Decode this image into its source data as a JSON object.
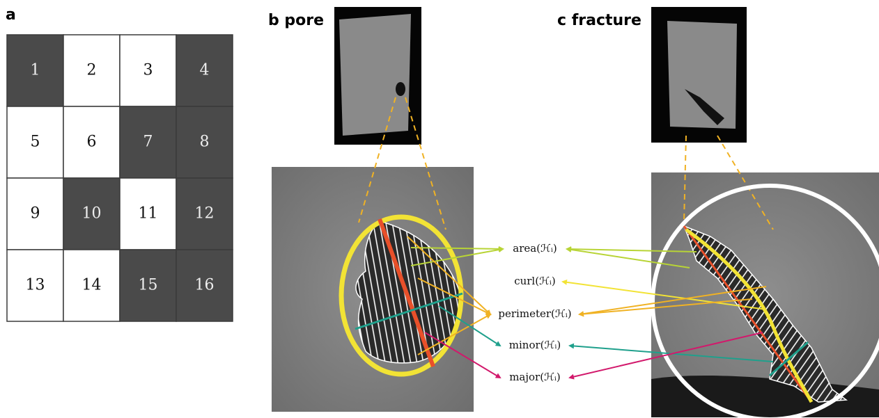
{
  "panels": {
    "a": "a",
    "b": "b pore",
    "c": "c fracture"
  },
  "grid": {
    "cells": [
      {
        "label": "1",
        "dark": true
      },
      {
        "label": "2",
        "dark": false
      },
      {
        "label": "3",
        "dark": false
      },
      {
        "label": "4",
        "dark": true
      },
      {
        "label": "5",
        "dark": false
      },
      {
        "label": "6",
        "dark": false
      },
      {
        "label": "7",
        "dark": true
      },
      {
        "label": "8",
        "dark": true
      },
      {
        "label": "9",
        "dark": false
      },
      {
        "label": "10",
        "dark": true
      },
      {
        "label": "11",
        "dark": false
      },
      {
        "label": "12",
        "dark": true
      },
      {
        "label": "13",
        "dark": false
      },
      {
        "label": "14",
        "dark": false
      },
      {
        "label": "15",
        "dark": true
      },
      {
        "label": "16",
        "dark": true
      }
    ]
  },
  "features": [
    {
      "label": "area(ℋᵢ)",
      "color": "#b8d436"
    },
    {
      "label": "curl(ℋᵢ)",
      "color": "#f2e335"
    },
    {
      "label": "perimeter(ℋᵢ)",
      "color": "#f0b224"
    },
    {
      "label": "minor(ℋᵢ)",
      "color": "#1fa08c"
    },
    {
      "label": "major(ℋᵢ)",
      "color": "#d2196c"
    }
  ]
}
